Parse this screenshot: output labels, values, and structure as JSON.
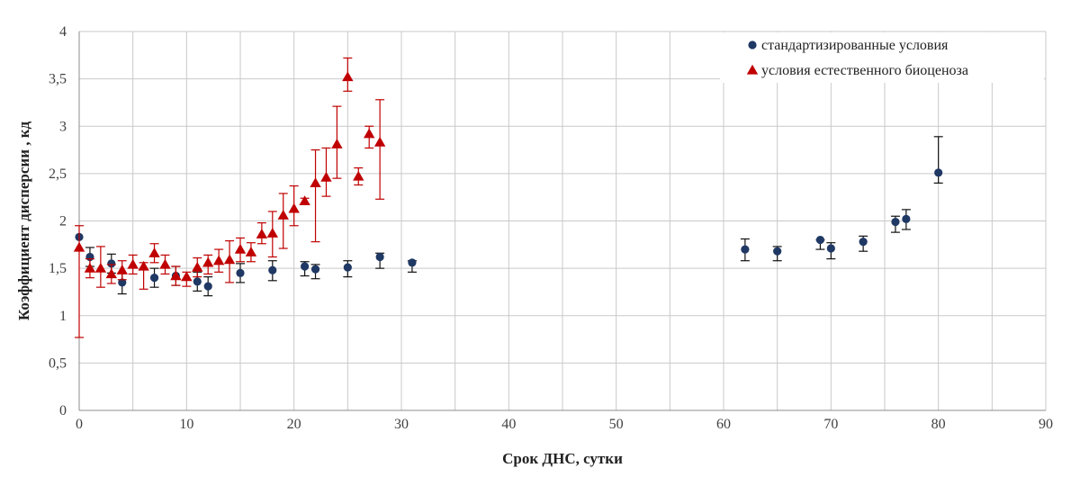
{
  "chart_data": {
    "type": "scatter",
    "xlabel": "Срок ДНС, сутки",
    "ylabel": "Коэффициент дисперсии , кд",
    "xlim": [
      0,
      90
    ],
    "ylim": [
      0,
      4
    ],
    "x_ticks": [
      0,
      10,
      20,
      30,
      40,
      50,
      60,
      70,
      80,
      90
    ],
    "x_tick_labels": [
      "0",
      "10",
      "20",
      "30",
      "40",
      "50",
      "60",
      "70",
      "80",
      "90"
    ],
    "x_minor_step": 5,
    "y_ticks": [
      0,
      0.5,
      1,
      1.5,
      2,
      2.5,
      3,
      3.5,
      4
    ],
    "y_tick_labels": [
      "0",
      "0,5",
      "1",
      "1,5",
      "2",
      "2,5",
      "3",
      "3,5",
      "4"
    ],
    "grid": true,
    "legend_position": "top-right",
    "series": [
      {
        "name": "стандартизированные условия",
        "marker": "circle",
        "color": "#1f3864",
        "errorbar_color": "#111111",
        "points": [
          {
            "x": 0,
            "y": 1.83,
            "lo": 1.83,
            "hi": 1.83
          },
          {
            "x": 1,
            "y": 1.62,
            "lo": 1.52,
            "hi": 1.72
          },
          {
            "x": 3,
            "y": 1.55,
            "lo": 1.45,
            "hi": 1.65
          },
          {
            "x": 4,
            "y": 1.35,
            "lo": 1.23,
            "hi": 1.45
          },
          {
            "x": 7,
            "y": 1.4,
            "lo": 1.3,
            "hi": 1.5
          },
          {
            "x": 9,
            "y": 1.42,
            "lo": 1.32,
            "hi": 1.52
          },
          {
            "x": 11,
            "y": 1.36,
            "lo": 1.26,
            "hi": 1.46
          },
          {
            "x": 12,
            "y": 1.31,
            "lo": 1.21,
            "hi": 1.41
          },
          {
            "x": 15,
            "y": 1.45,
            "lo": 1.35,
            "hi": 1.55
          },
          {
            "x": 18,
            "y": 1.48,
            "lo": 1.37,
            "hi": 1.58
          },
          {
            "x": 21,
            "y": 1.52,
            "lo": 1.42,
            "hi": 1.57
          },
          {
            "x": 22,
            "y": 1.49,
            "lo": 1.39,
            "hi": 1.54
          },
          {
            "x": 25,
            "y": 1.51,
            "lo": 1.41,
            "hi": 1.58
          },
          {
            "x": 28,
            "y": 1.62,
            "lo": 1.5,
            "hi": 1.66
          },
          {
            "x": 31,
            "y": 1.56,
            "lo": 1.46,
            "hi": 1.58
          },
          {
            "x": 62,
            "y": 1.7,
            "lo": 1.58,
            "hi": 1.81
          },
          {
            "x": 65,
            "y": 1.68,
            "lo": 1.58,
            "hi": 1.73
          },
          {
            "x": 69,
            "y": 1.8,
            "lo": 1.7,
            "hi": 1.8
          },
          {
            "x": 70,
            "y": 1.71,
            "lo": 1.6,
            "hi": 1.77
          },
          {
            "x": 73,
            "y": 1.78,
            "lo": 1.68,
            "hi": 1.84
          },
          {
            "x": 76,
            "y": 1.99,
            "lo": 1.88,
            "hi": 2.05
          },
          {
            "x": 77,
            "y": 2.02,
            "lo": 1.91,
            "hi": 2.12
          },
          {
            "x": 80,
            "y": 2.51,
            "lo": 2.4,
            "hi": 2.89
          }
        ]
      },
      {
        "name": "условия естественного биоценоза",
        "marker": "triangle",
        "color": "#c00000",
        "errorbar_color": "#c00000",
        "points": [
          {
            "x": 0,
            "y": 1.72,
            "lo": 0.77,
            "hi": 1.95
          },
          {
            "x": 1,
            "y": 1.5,
            "lo": 1.4,
            "hi": 1.6
          },
          {
            "x": 2,
            "y": 1.5,
            "lo": 1.3,
            "hi": 1.73
          },
          {
            "x": 3,
            "y": 1.44,
            "lo": 1.34,
            "hi": 1.54
          },
          {
            "x": 4,
            "y": 1.48,
            "lo": 1.38,
            "hi": 1.58
          },
          {
            "x": 5,
            "y": 1.54,
            "lo": 1.44,
            "hi": 1.64
          },
          {
            "x": 6,
            "y": 1.52,
            "lo": 1.28,
            "hi": 1.56
          },
          {
            "x": 7,
            "y": 1.66,
            "lo": 1.56,
            "hi": 1.76
          },
          {
            "x": 8,
            "y": 1.54,
            "lo": 1.44,
            "hi": 1.64
          },
          {
            "x": 9,
            "y": 1.42,
            "lo": 1.32,
            "hi": 1.52
          },
          {
            "x": 10,
            "y": 1.41,
            "lo": 1.31,
            "hi": 1.46
          },
          {
            "x": 11,
            "y": 1.51,
            "lo": 1.41,
            "hi": 1.61
          },
          {
            "x": 12,
            "y": 1.56,
            "lo": 1.44,
            "hi": 1.64
          },
          {
            "x": 13,
            "y": 1.58,
            "lo": 1.46,
            "hi": 1.7
          },
          {
            "x": 14,
            "y": 1.59,
            "lo": 1.35,
            "hi": 1.79
          },
          {
            "x": 15,
            "y": 1.7,
            "lo": 1.57,
            "hi": 1.82
          },
          {
            "x": 16,
            "y": 1.67,
            "lo": 1.57,
            "hi": 1.77
          },
          {
            "x": 17,
            "y": 1.86,
            "lo": 1.76,
            "hi": 1.98
          },
          {
            "x": 18,
            "y": 1.87,
            "lo": 1.62,
            "hi": 2.1
          },
          {
            "x": 19,
            "y": 2.06,
            "lo": 1.71,
            "hi": 2.29
          },
          {
            "x": 20,
            "y": 2.13,
            "lo": 1.95,
            "hi": 2.37
          },
          {
            "x": 21,
            "y": 2.21,
            "lo": 2.18,
            "hi": 2.24
          },
          {
            "x": 22,
            "y": 2.4,
            "lo": 1.78,
            "hi": 2.75
          },
          {
            "x": 23,
            "y": 2.46,
            "lo": 2.26,
            "hi": 2.77
          },
          {
            "x": 24,
            "y": 2.81,
            "lo": 2.45,
            "hi": 3.21
          },
          {
            "x": 25,
            "y": 3.52,
            "lo": 3.37,
            "hi": 3.72
          },
          {
            "x": 26,
            "y": 2.47,
            "lo": 2.38,
            "hi": 2.56
          },
          {
            "x": 27,
            "y": 2.92,
            "lo": 2.77,
            "hi": 3.0
          },
          {
            "x": 28,
            "y": 2.83,
            "lo": 2.23,
            "hi": 3.28
          }
        ]
      }
    ]
  }
}
